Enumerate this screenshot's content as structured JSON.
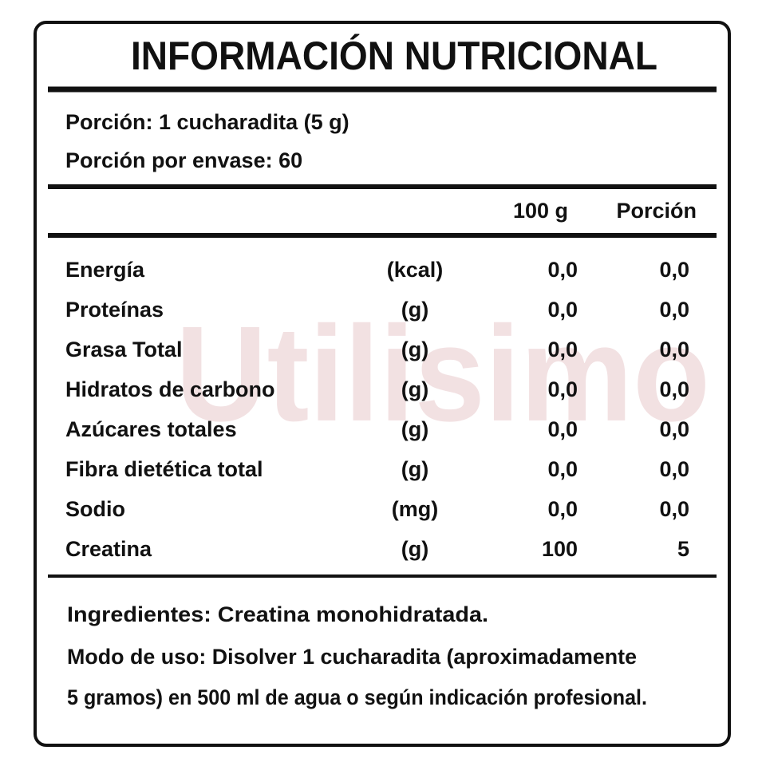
{
  "watermark": "Utilisimo",
  "title": "INFORMACIÓN NUTRICIONAL",
  "serving": [
    "Porción: 1 cucharadita (5 g)",
    "Porción por envase: 60"
  ],
  "table": {
    "columns": [
      "100 g",
      "Porción"
    ],
    "rows": [
      [
        "Energía",
        "(kcal)",
        "0,0",
        "0,0"
      ],
      [
        "Proteínas",
        "(g)",
        "0,0",
        "0,0"
      ],
      [
        "Grasa Total",
        "(g)",
        "0,0",
        "0,0"
      ],
      [
        "Hidratos de carbono",
        "(g)",
        "0,0",
        "0,0"
      ],
      [
        "Azúcares totales",
        "(g)",
        "0,0",
        "0,0"
      ],
      [
        "Fibra dietética total",
        "(g)",
        "0,0",
        "0,0"
      ],
      [
        "Sodio",
        "(mg)",
        "0,0",
        "0,0"
      ],
      [
        "Creatina",
        "(g)",
        "100",
        "5"
      ]
    ]
  },
  "ingredients": "Ingredientes: Creatina monohidratada.",
  "usage": [
    "Modo de uso: Disolver 1 cucharadita (aproximadamente",
    "5 gramos) en 500 ml de agua o según indicación profesional."
  ]
}
